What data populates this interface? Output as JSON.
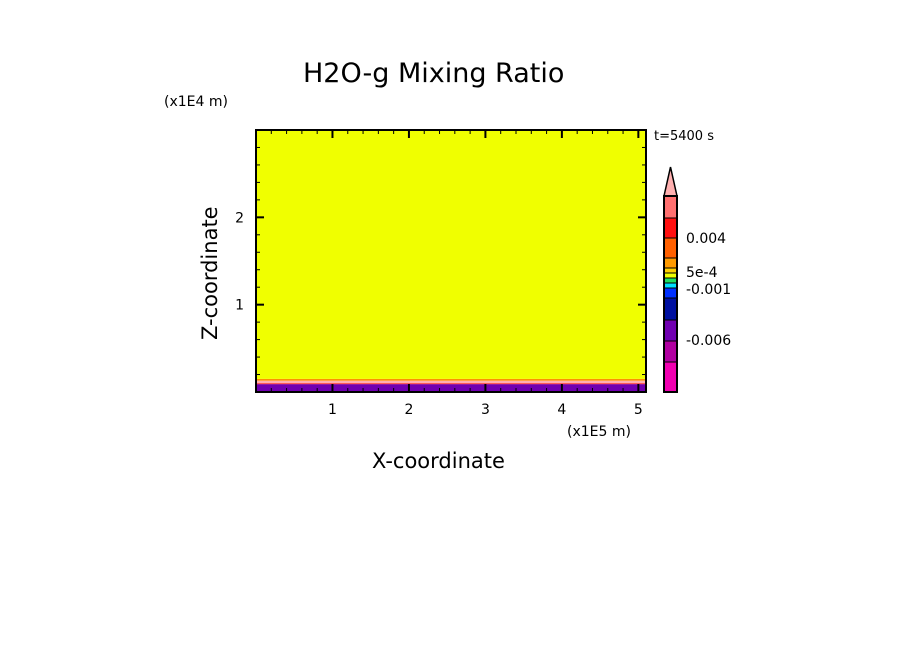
{
  "chart_data": {
    "type": "heatmap",
    "title": "H2O-g Mixing Ratio",
    "xlabel": "X-coordinate",
    "ylabel": "Z-coordinate",
    "x_unit": "(x1E5 m)",
    "y_unit": "(x1E4 m)",
    "time_label": "t=5400 s",
    "xlim": [
      0,
      5.1
    ],
    "ylim": [
      0,
      3
    ],
    "x_ticks": [
      "1",
      "2",
      "3",
      "4",
      "5"
    ],
    "y_ticks": [
      "1",
      "2"
    ],
    "field_bands": [
      {
        "z_from": 0,
        "z_to": 0.09,
        "color": "#7000b0"
      },
      {
        "z_from": 0.09,
        "z_to": 0.1,
        "color": "#ff1010"
      },
      {
        "z_from": 0.1,
        "z_to": 0.13,
        "color": "#ffb0b0"
      },
      {
        "z_from": 0.13,
        "z_to": 0.15,
        "color": "#ff9000"
      },
      {
        "z_from": 0.15,
        "z_to": 3,
        "color": "#f0ff00"
      }
    ],
    "colorbar": {
      "labels": [
        {
          "text": "0.004",
          "value": 0.004
        },
        {
          "text": "5e-4",
          "value": 0.0005
        },
        {
          "text": "-0.001",
          "value": -0.001
        },
        {
          "text": "-0.006",
          "value": -0.006
        }
      ],
      "colors_top_to_bottom": [
        "#ffb0b0",
        "#ff7070",
        "#ff1010",
        "#ff6000",
        "#ff9a00",
        "#ffd000",
        "#f0ff00",
        "#20e060",
        "#00e0ff",
        "#0030ff",
        "#0010a0",
        "#7000b0",
        "#b000a0",
        "#f000b0"
      ],
      "extend_top": true
    }
  }
}
